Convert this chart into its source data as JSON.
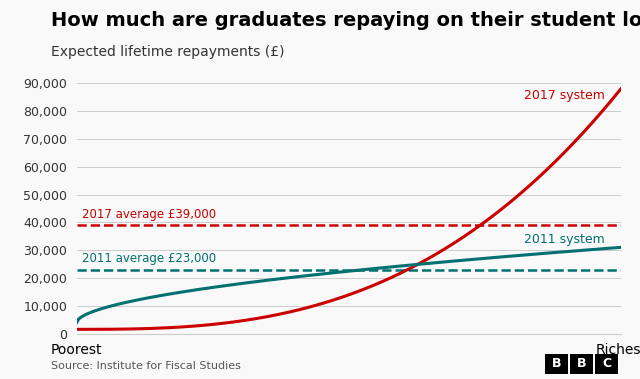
{
  "title": "How much are graduates repaying on their student loans?",
  "subtitle": "Expected lifetime repayments (£)",
  "source": "Source: Institute for Fiscal Studies",
  "color_2017": "#cc0000",
  "color_2011": "#007070",
  "color_avg_2017": "#cc0000",
  "color_avg_2011": "#007070",
  "avg_2017": 39000,
  "avg_2011": 23000,
  "label_2017": "2017 system",
  "label_2011": "2011 system",
  "label_avg_2017": "2017 average £39,000",
  "label_avg_2011": "2011 average £23,000",
  "ylim": [
    0,
    90000
  ],
  "yticks": [
    0,
    10000,
    20000,
    30000,
    40000,
    50000,
    60000,
    70000,
    80000,
    90000
  ],
  "bg_color": "#f5f5f5",
  "title_fontsize": 14,
  "subtitle_fontsize": 10,
  "bbc_logo_color": "#000000"
}
